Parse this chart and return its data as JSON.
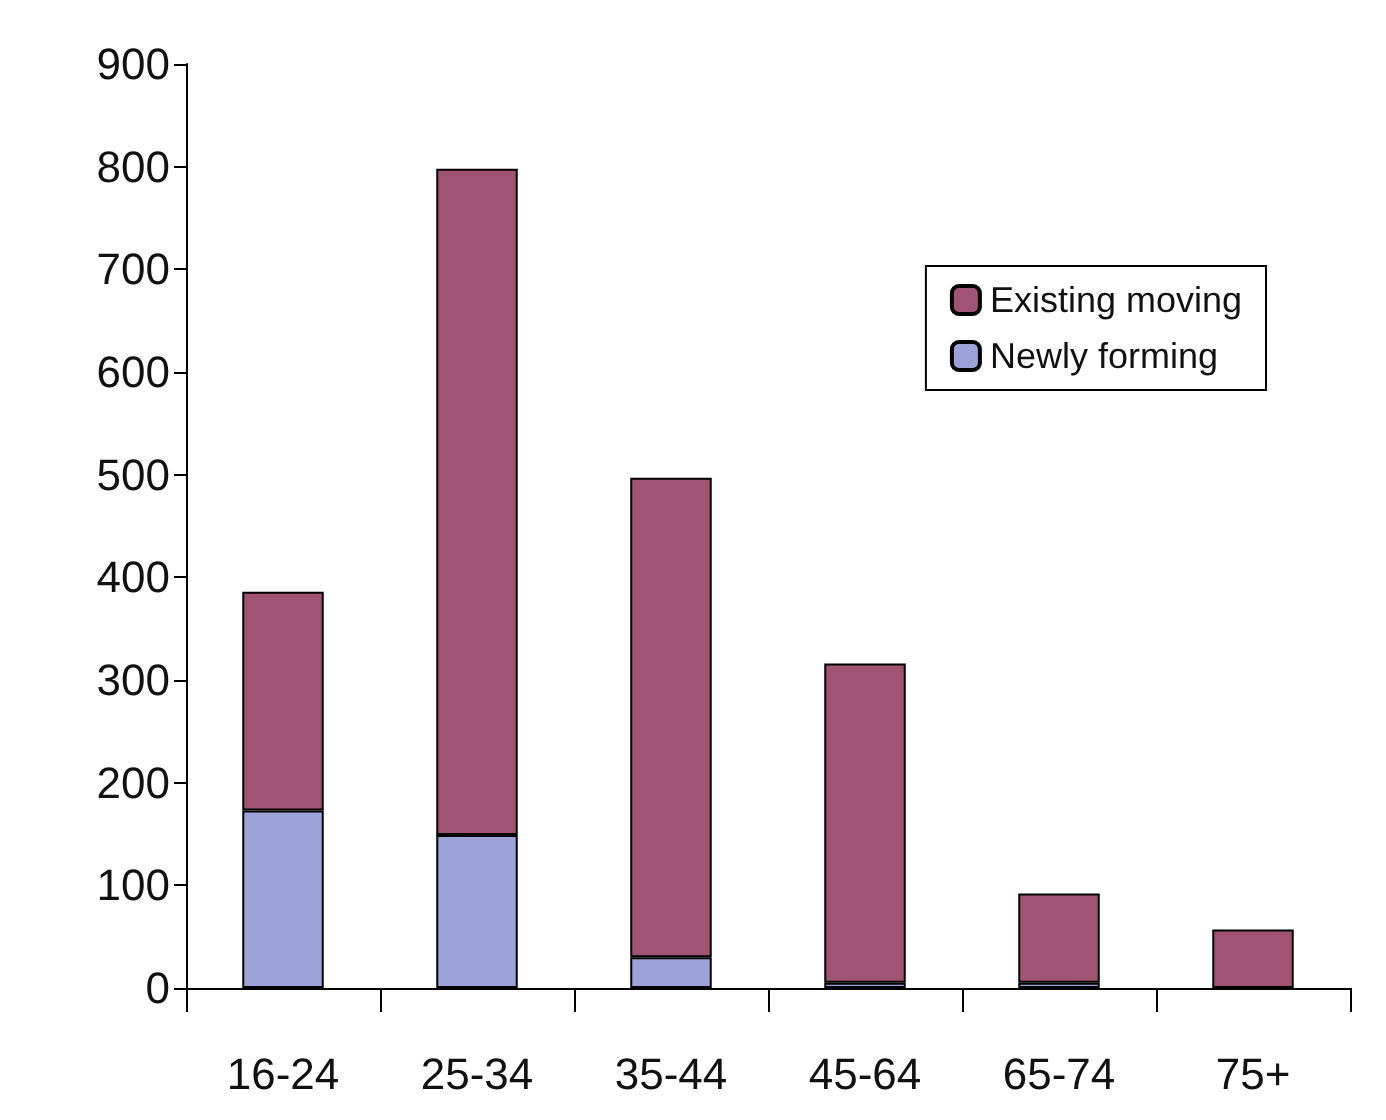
{
  "chart_data": {
    "type": "bar",
    "stacked": true,
    "categories": [
      "16-24",
      "25-34",
      "35-44",
      "45-64",
      "65-74",
      "75+"
    ],
    "series": [
      {
        "name": "Newly forming",
        "color": "#9ca3d8",
        "values": [
          173,
          149,
          30,
          5,
          5,
          null
        ]
      },
      {
        "name": "Existing moving",
        "color": "#a05373",
        "values": [
          213,
          649,
          467,
          311,
          87,
          57
        ]
      }
    ],
    "ylim": [
      0,
      900
    ],
    "yticks": [
      0,
      100,
      200,
      300,
      400,
      500,
      600,
      700,
      800,
      900
    ],
    "grid": false,
    "legend": "top right"
  }
}
